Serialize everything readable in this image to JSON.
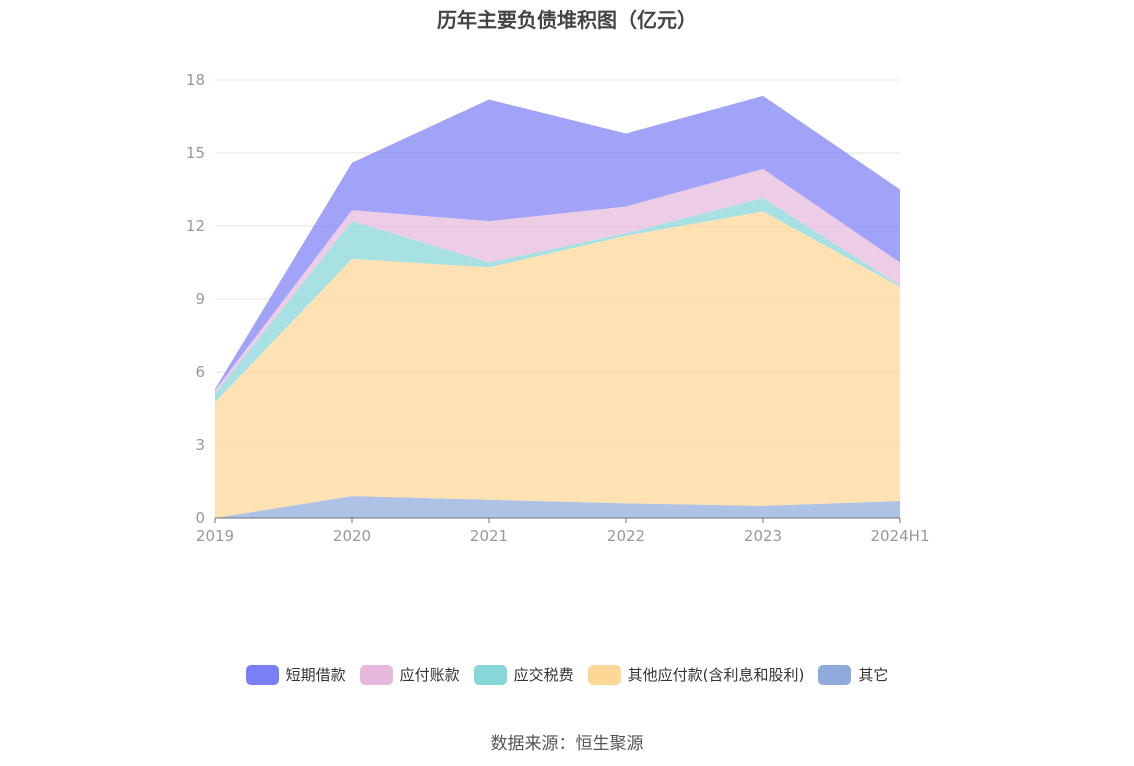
{
  "chart_data": {
    "type": "area",
    "stacked": true,
    "title": "历年主要负债堆积图（亿元）",
    "categories": [
      "2019",
      "2020",
      "2021",
      "2022",
      "2023",
      "2024H1"
    ],
    "ylim": [
      0,
      18
    ],
    "yticks": [
      0,
      3,
      6,
      9,
      12,
      15,
      18
    ],
    "grid": true,
    "legend_position": "bottom",
    "series": [
      {
        "name": "其它",
        "color": "#8faadc",
        "values": [
          0.0,
          0.9,
          0.75,
          0.6,
          0.5,
          0.7
        ]
      },
      {
        "name": "其他应付款(含利息和股利)",
        "color": "#fdd795",
        "values": [
          4.75,
          9.75,
          9.55,
          11.0,
          12.1,
          8.8
        ]
      },
      {
        "name": "应交税费",
        "color": "#87d6d8",
        "values": [
          0.35,
          1.55,
          0.2,
          0.1,
          0.55,
          0.05
        ]
      },
      {
        "name": "应付账款",
        "color": "#e6b8dc",
        "values": [
          0.15,
          0.45,
          1.7,
          1.1,
          1.2,
          0.95
        ]
      },
      {
        "name": "短期借款",
        "color": "#7b7ff5",
        "values": [
          0.05,
          1.95,
          5.0,
          3.0,
          3.0,
          3.0
        ]
      }
    ],
    "source": "数据来源：恒生聚源"
  },
  "legend_order": [
    "短期借款",
    "应付账款",
    "应交税费",
    "其他应付款(含利息和股利)",
    "其它"
  ]
}
